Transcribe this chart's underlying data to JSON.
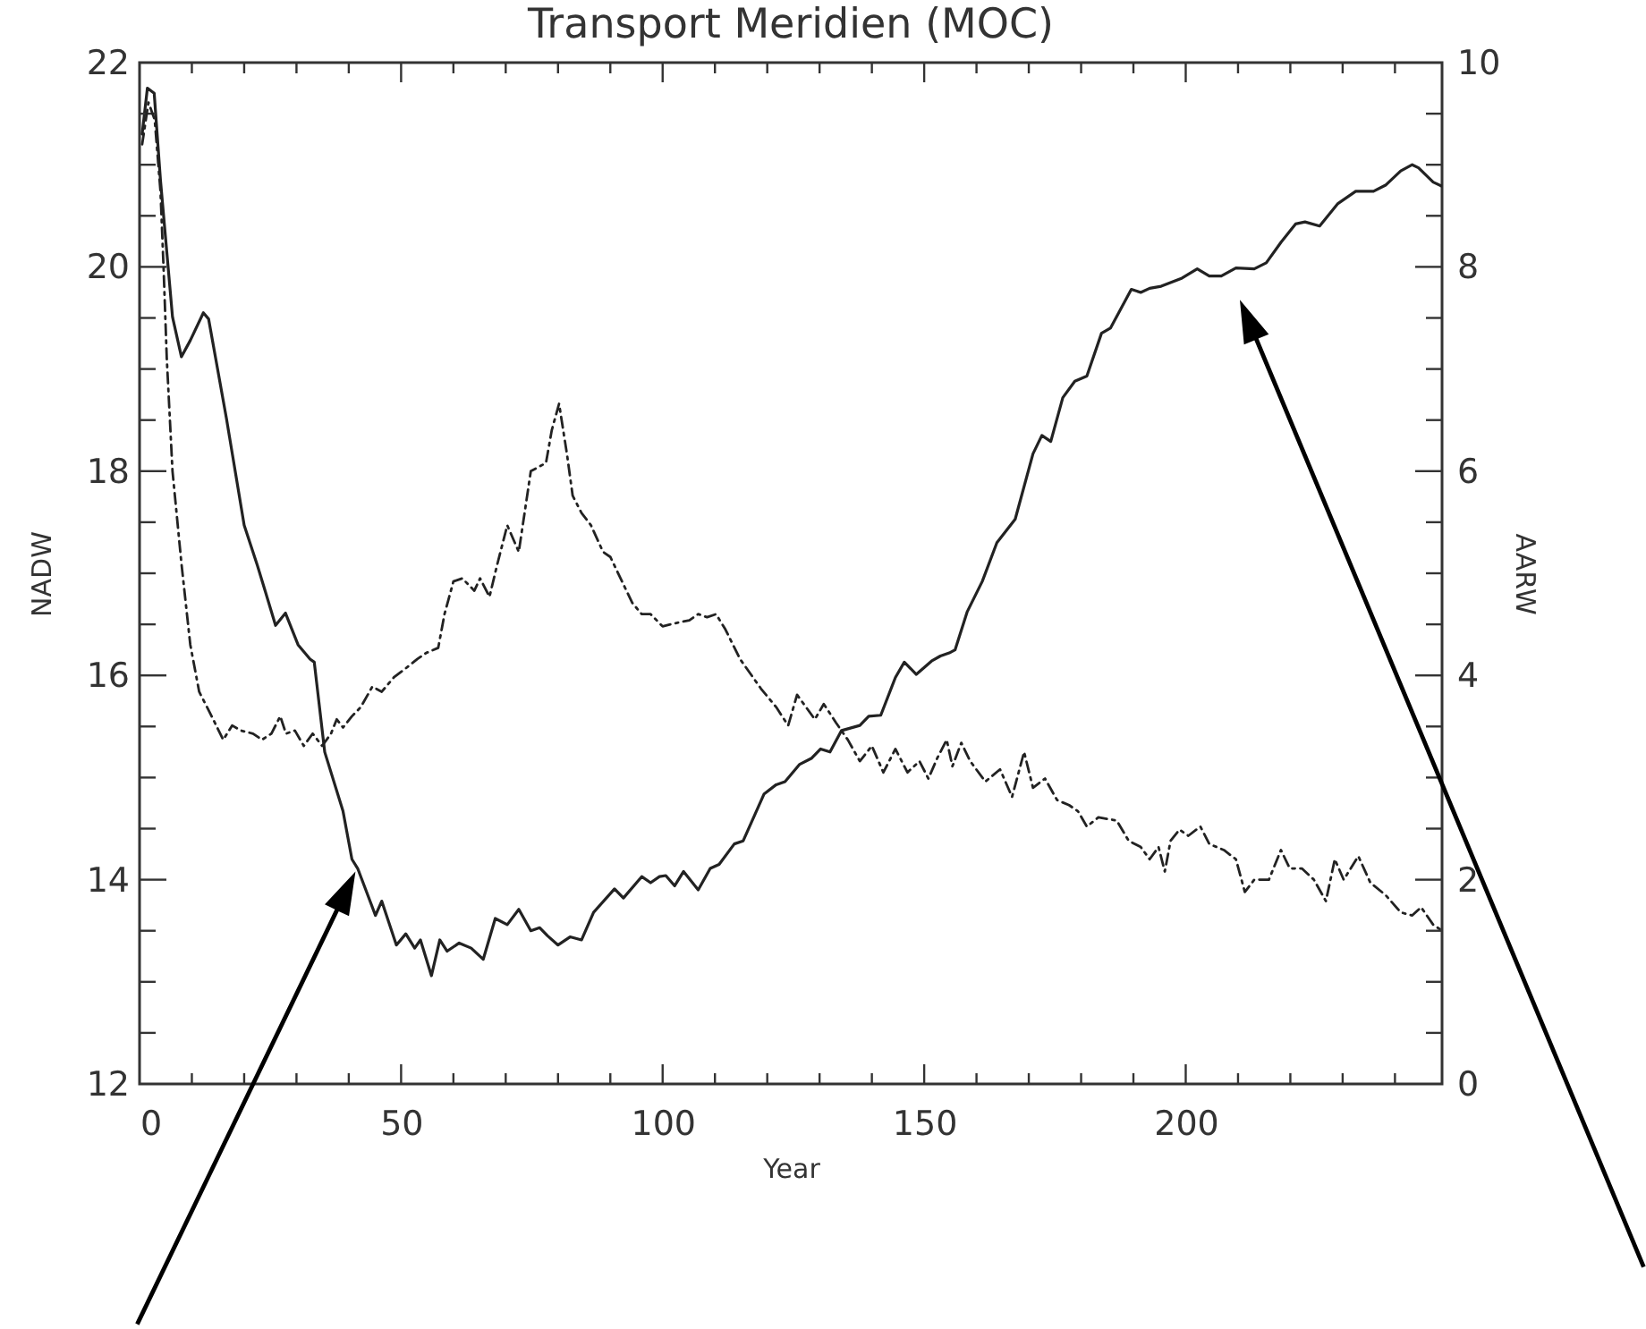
{
  "chart_data": {
    "type": "line",
    "title": "Transport Meridien (MOC)",
    "xlabel": "Year",
    "ylabel": "NADW",
    "y2label": "AARW",
    "xlim": [
      0,
      249
    ],
    "xticks": [
      0,
      {
        "value": 10,
        "label": null
      },
      {
        "value": 20,
        "label": null
      },
      {
        "value": 30,
        "label": null
      },
      {
        "value": 40,
        "label": null
      },
      50,
      {
        "value": 60,
        "label": null
      },
      {
        "value": 70,
        "label": null
      },
      {
        "value": 80,
        "label": null
      },
      {
        "value": 90,
        "label": null
      },
      100,
      {
        "value": 110,
        "label": null
      },
      {
        "value": 120,
        "label": null
      },
      {
        "value": 130,
        "label": null
      },
      {
        "value": 140,
        "label": null
      },
      150,
      {
        "value": 160,
        "label": null
      },
      {
        "value": 170,
        "label": null
      },
      {
        "value": 180,
        "label": null
      },
      {
        "value": 190,
        "label": null
      },
      200,
      {
        "value": 210,
        "label": null
      },
      {
        "value": 220,
        "label": null
      },
      {
        "value": 230,
        "label": null
      },
      {
        "value": 240,
        "label": null
      }
    ],
    "ylim": [
      12,
      22
    ],
    "yticks": [
      12,
      {
        "value": 12.5,
        "label": null
      },
      {
        "value": 13,
        "label": null
      },
      {
        "value": 13.5,
        "label": null
      },
      14,
      {
        "value": 14.5,
        "label": null
      },
      {
        "value": 15,
        "label": null
      },
      {
        "value": 15.5,
        "label": null
      },
      16,
      {
        "value": 16.5,
        "label": null
      },
      {
        "value": 17,
        "label": null
      },
      {
        "value": 17.5,
        "label": null
      },
      18,
      {
        "value": 18.5,
        "label": null
      },
      {
        "value": 19,
        "label": null
      },
      {
        "value": 19.5,
        "label": null
      },
      20,
      {
        "value": 20.5,
        "label": null
      },
      {
        "value": 21,
        "label": null
      },
      {
        "value": 21.5,
        "label": null
      },
      22
    ],
    "y2lim": [
      0,
      10
    ],
    "y2ticks": [
      0,
      {
        "value": 0.5,
        "label": null
      },
      {
        "value": 1,
        "label": null
      },
      {
        "value": 1.5,
        "label": null
      },
      2,
      {
        "value": 2.5,
        "label": null
      },
      {
        "value": 3,
        "label": null
      },
      {
        "value": 3.5,
        "label": null
      },
      4,
      {
        "value": 4.5,
        "label": null
      },
      {
        "value": 5,
        "label": null
      },
      {
        "value": 5.5,
        "label": null
      },
      6,
      {
        "value": 6.5,
        "label": null
      },
      {
        "value": 7,
        "label": null
      },
      {
        "value": 7.5,
        "label": null
      },
      8,
      {
        "value": 8.5,
        "label": null
      },
      {
        "value": 9,
        "label": null
      },
      {
        "value": 9.5,
        "label": null
      },
      10
    ],
    "series": [
      {
        "color": "#222222",
        "line_style": "solid",
        "x": [
          0.5,
          1.5,
          2.8,
          4.0,
          6.3,
          8.0,
          9.7,
          12.2,
          13.2,
          16.6,
          20.0,
          22.5,
          24.0,
          26.0,
          27.9,
          30.3,
          32.6,
          33.4,
          35.4,
          38.9,
          40.6,
          41.7,
          45.1,
          46.3,
          49.1,
          50.9,
          52.6,
          53.7,
          55.8,
          57.4,
          58.8,
          61.1,
          63.4,
          65.7,
          68.0,
          70.3,
          72.5,
          74.8,
          76.5,
          78.0,
          80.0,
          82.3,
          84.5,
          86.8,
          90.8,
          92.5,
          96.0,
          97.7,
          99.4,
          100.6,
          102.3,
          104.0,
          106.8,
          109.1,
          110.8,
          113.7,
          115.4,
          119.4,
          121.7,
          123.4,
          126.2,
          128.5,
          130.2,
          132.0,
          134.2,
          137.7,
          139.4,
          141.7,
          144.5,
          146.2,
          148.5,
          151.4,
          153.1,
          154.8,
          155.9,
          158.2,
          161.1,
          163.9,
          167.4,
          170.8,
          172.5,
          174.2,
          176.5,
          178.8,
          181.1,
          183.9,
          185.6,
          189.6,
          191.4,
          193.1,
          195.3,
          199.3,
          202.2,
          204.5,
          206.8,
          209.6,
          213.1,
          215.4,
          218.2,
          221.0,
          222.8,
          225.6,
          229.1,
          232.5,
          235.9,
          238.2,
          241.1,
          243.3,
          244.5,
          247.3,
          249.0
        ],
        "values": [
          21.3,
          21.75,
          21.7,
          20.85,
          19.51,
          19.12,
          19.28,
          19.55,
          19.49,
          18.52,
          17.47,
          17.08,
          16.83,
          16.49,
          16.61,
          16.3,
          16.16,
          16.13,
          15.25,
          14.67,
          14.2,
          14.11,
          13.65,
          13.79,
          13.36,
          13.47,
          13.33,
          13.41,
          13.06,
          13.41,
          13.3,
          13.38,
          13.33,
          13.22,
          13.62,
          13.56,
          13.71,
          13.5,
          13.53,
          13.45,
          13.36,
          13.44,
          13.41,
          13.68,
          13.91,
          13.82,
          14.03,
          13.97,
          14.03,
          14.04,
          13.94,
          14.08,
          13.9,
          14.11,
          14.15,
          14.35,
          14.38,
          14.84,
          14.93,
          14.96,
          15.13,
          15.19,
          15.28,
          15.25,
          15.46,
          15.51,
          15.6,
          15.61,
          15.98,
          16.13,
          16.01,
          16.14,
          16.19,
          16.22,
          16.25,
          16.62,
          16.92,
          17.3,
          17.53,
          18.17,
          18.35,
          18.29,
          18.72,
          18.88,
          18.93,
          19.35,
          19.4,
          19.78,
          19.75,
          19.79,
          19.81,
          19.89,
          19.98,
          19.91,
          19.91,
          19.99,
          19.98,
          20.04,
          20.24,
          20.42,
          20.44,
          20.4,
          20.62,
          20.74,
          20.74,
          20.8,
          20.94,
          21.0,
          20.97,
          20.83,
          20.79
        ]
      },
      {
        "color": "#222222",
        "line_style": "dashed",
        "axis": "y2",
        "x": [
          0.5,
          1.7,
          2.9,
          4.0,
          4.6,
          5.2,
          6.3,
          8.0,
          9.7,
          11.4,
          13.2,
          16.0,
          17.7,
          19.4,
          21.7,
          23.4,
          25.2,
          26.9,
          28.0,
          29.7,
          31.4,
          33.1,
          34.9,
          36.6,
          37.7,
          38.9,
          40.6,
          42.3,
          44.5,
          46.3,
          48.6,
          50.9,
          53.1,
          54.8,
          57.1,
          58.3,
          60.0,
          61.7,
          64.0,
          65.1,
          66.9,
          68.3,
          70.3,
          72.5,
          74.8,
          77.7,
          78.8,
          80.2,
          81.7,
          82.8,
          84.5,
          86.3,
          88.6,
          90.0,
          94.2,
          96.0,
          97.7,
          100.0,
          102.3,
          105.1,
          106.8,
          108.5,
          110.2,
          112.0,
          114.8,
          118.8,
          121.7,
          124.0,
          125.7,
          127.4,
          129.1,
          130.8,
          133.1,
          135.4,
          137.7,
          140.0,
          142.2,
          144.5,
          146.8,
          149.1,
          150.8,
          152.5,
          154.3,
          155.4,
          157.1,
          158.8,
          161.7,
          164.5,
          166.8,
          169.1,
          170.8,
          173.1,
          175.4,
          177.7,
          179.4,
          181.1,
          183.3,
          186.8,
          189.1,
          191.4,
          193.1,
          194.8,
          196.0,
          197.1,
          198.8,
          200.5,
          202.8,
          204.5,
          207.3,
          209.6,
          211.3,
          213.1,
          215.9,
          218.2,
          219.9,
          222.2,
          224.5,
          226.8,
          228.5,
          230.2,
          233.0,
          235.3,
          238.2,
          241.1,
          243.3,
          245.0,
          247.3,
          249.0
        ],
        "values": [
          9.2,
          9.61,
          9.44,
          8.74,
          7.98,
          7.11,
          6.0,
          5.1,
          4.3,
          3.84,
          3.66,
          3.37,
          3.51,
          3.46,
          3.43,
          3.37,
          3.43,
          3.6,
          3.43,
          3.46,
          3.31,
          3.43,
          3.31,
          3.43,
          3.57,
          3.49,
          3.6,
          3.69,
          3.89,
          3.84,
          3.98,
          4.07,
          4.16,
          4.22,
          4.27,
          4.6,
          4.92,
          4.95,
          4.83,
          4.95,
          4.77,
          5.07,
          5.47,
          5.21,
          6.0,
          6.08,
          6.4,
          6.66,
          6.17,
          5.76,
          5.59,
          5.47,
          5.21,
          5.16,
          4.71,
          4.6,
          4.6,
          4.48,
          4.51,
          4.54,
          4.6,
          4.57,
          4.6,
          4.45,
          4.16,
          3.87,
          3.69,
          3.51,
          3.81,
          3.69,
          3.57,
          3.72,
          3.54,
          3.37,
          3.16,
          3.31,
          3.05,
          3.28,
          3.05,
          3.16,
          2.99,
          3.19,
          3.37,
          3.11,
          3.34,
          3.16,
          2.96,
          3.08,
          2.81,
          3.25,
          2.9,
          2.99,
          2.78,
          2.73,
          2.67,
          2.52,
          2.61,
          2.58,
          2.38,
          2.32,
          2.2,
          2.32,
          2.08,
          2.38,
          2.49,
          2.43,
          2.52,
          2.35,
          2.29,
          2.2,
          1.88,
          2.0,
          2.0,
          2.29,
          2.11,
          2.11,
          2.0,
          1.79,
          2.2,
          2.0,
          2.23,
          1.97,
          1.85,
          1.68,
          1.65,
          1.73,
          1.56,
          1.5
        ]
      }
    ]
  }
}
